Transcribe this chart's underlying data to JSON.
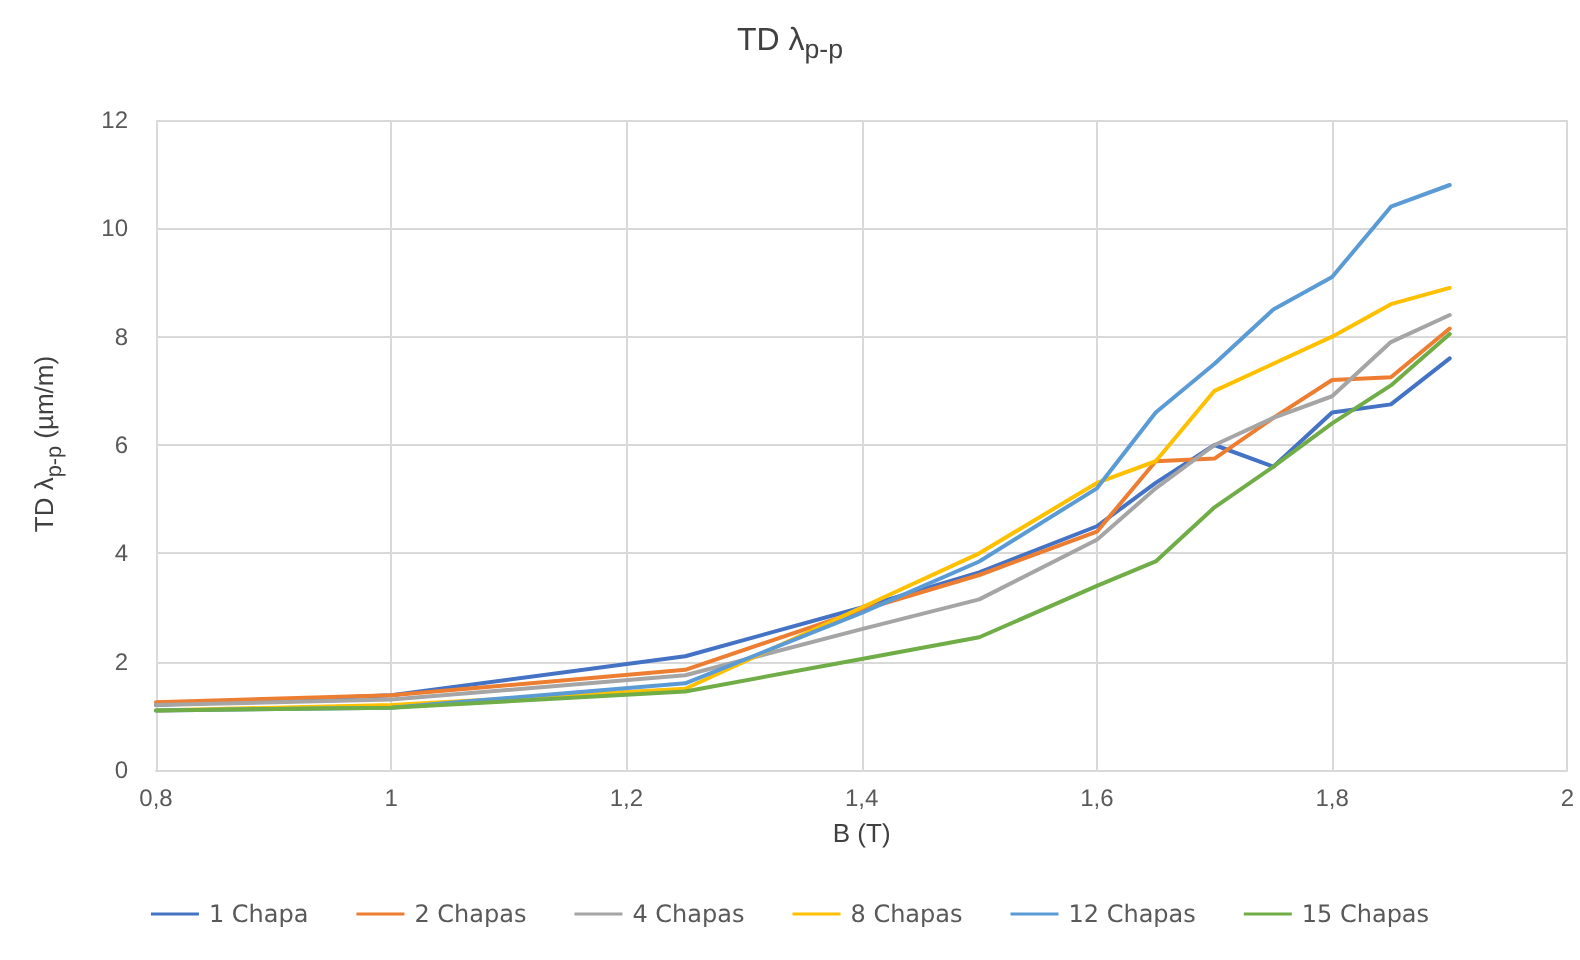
{
  "chart_data": {
    "type": "line",
    "title": "TD λ$_{p-p}$",
    "xlabel": "B (T)",
    "ylabel": "TD λ$_{p-p}$ (µm/m)",
    "x": [
      0.8,
      1.0,
      1.25,
      1.4,
      1.5,
      1.6,
      1.65,
      1.7,
      1.75,
      1.8,
      1.85,
      1.9
    ],
    "series": [
      {
        "name": "1 Chapa",
        "color": "#4472c4",
        "values": [
          1.2,
          1.38,
          2.1,
          3.0,
          3.65,
          4.5,
          5.3,
          6.0,
          5.6,
          6.6,
          6.75,
          7.6
        ]
      },
      {
        "name": "2 Chapas",
        "color": "#ed7d31",
        "values": [
          1.25,
          1.38,
          1.85,
          2.95,
          3.6,
          4.4,
          5.7,
          5.75,
          6.5,
          7.2,
          7.25,
          8.15
        ]
      },
      {
        "name": "4 Chapas",
        "color": "#a5a5a5",
        "values": [
          1.2,
          1.3,
          1.75,
          2.6,
          3.15,
          4.25,
          5.2,
          6.0,
          6.5,
          6.9,
          7.9,
          8.4
        ]
      },
      {
        "name": "8 Chapas",
        "color": "#ffc000",
        "values": [
          1.1,
          1.2,
          1.5,
          3.0,
          4.0,
          5.3,
          5.7,
          7.0,
          7.5,
          8.0,
          8.6,
          8.9
        ]
      },
      {
        "name": "12 Chapas",
        "color": "#5b9bd5",
        "values": [
          1.1,
          1.15,
          1.6,
          2.9,
          3.85,
          5.2,
          6.6,
          7.5,
          8.5,
          9.1,
          10.4,
          10.8
        ]
      },
      {
        "name": "15 Chapas",
        "color": "#70ad47",
        "values": [
          1.1,
          1.15,
          1.45,
          2.05,
          2.45,
          3.4,
          3.85,
          4.85,
          5.6,
          6.4,
          7.1,
          8.05
        ]
      }
    ],
    "xlim": [
      0.8,
      2
    ],
    "xticks": [
      {
        "value": 0.8,
        "label": "0,8"
      },
      1,
      {
        "value": 1.2,
        "label": "1,2"
      },
      {
        "value": 1.4,
        "label": "1,4"
      },
      {
        "value": 1.6,
        "label": "1,6"
      },
      {
        "value": 1.8,
        "label": "1,8"
      },
      2
    ],
    "ylim": [
      0,
      12
    ],
    "yticks": [
      0,
      2,
      4,
      6,
      8,
      10,
      12
    ],
    "grid": true,
    "legend": "bottom",
    "marker": "none",
    "line_style": "solid"
  }
}
